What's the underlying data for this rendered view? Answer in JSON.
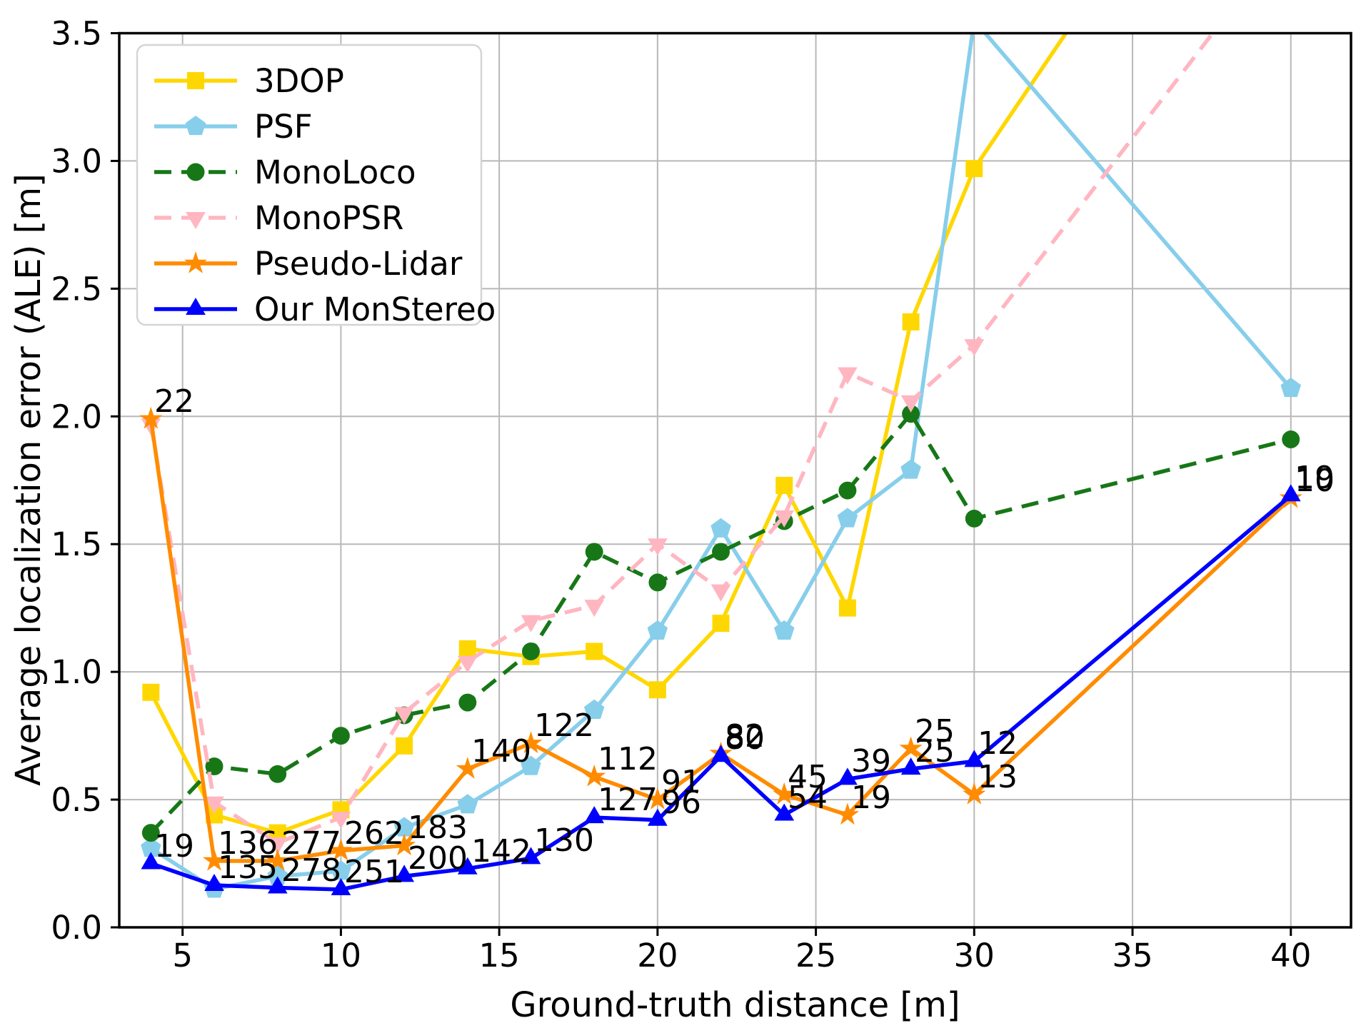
{
  "figure": {
    "background": "#ffffff",
    "plot_border_color": "#000000",
    "grid_color": "#b8b8b8"
  },
  "chart_data": {
    "type": "line",
    "title": "",
    "xlabel": "Ground-truth distance [m]",
    "ylabel": "Average localization error (ALE) [m]",
    "xlim": [
      3.0,
      41.9
    ],
    "ylim": [
      0,
      3.5
    ],
    "xticks": [
      5,
      10,
      15,
      20,
      25,
      30,
      35,
      40
    ],
    "yticks": [
      0.0,
      0.5,
      1.0,
      1.5,
      2.0,
      2.5,
      3.0,
      3.5
    ],
    "grid": true,
    "legend_position": "upper left",
    "x": [
      4,
      6,
      8,
      10,
      12,
      14,
      16,
      18,
      20,
      22,
      24,
      26,
      28,
      30,
      40
    ],
    "series": [
      {
        "name": "3DOP",
        "color": "#FFD700",
        "marker": "square",
        "linestyle": "solid",
        "values": [
          0.92,
          0.44,
          0.37,
          0.46,
          0.71,
          1.09,
          1.06,
          1.08,
          0.93,
          1.19,
          1.73,
          1.25,
          2.37,
          2.97,
          4.8
        ]
      },
      {
        "name": "PSF",
        "color": "#87CEEB",
        "marker": "pentagon",
        "linestyle": "solid",
        "values": [
          0.31,
          0.15,
          0.2,
          0.22,
          0.39,
          0.48,
          0.63,
          0.85,
          1.16,
          1.56,
          1.16,
          1.6,
          1.79,
          3.55,
          2.11
        ]
      },
      {
        "name": "MonoLoco",
        "color": "#177717",
        "marker": "circle",
        "linestyle": "dashed",
        "values": [
          0.37,
          0.63,
          0.6,
          0.75,
          0.83,
          0.88,
          1.08,
          1.47,
          1.35,
          1.47,
          1.59,
          1.71,
          2.01,
          1.6,
          1.91
        ]
      },
      {
        "name": "MonoPSR",
        "color": "#FFB6C1",
        "marker": "triangle-down",
        "linestyle": "dashed",
        "values": [
          1.97,
          0.49,
          0.33,
          0.43,
          0.84,
          1.04,
          1.2,
          1.26,
          1.5,
          1.32,
          1.61,
          2.17,
          2.06,
          2.28,
          3.9
        ]
      },
      {
        "name": "Pseudo-Lidar",
        "color": "#FF8C00",
        "marker": "star",
        "linestyle": "solid",
        "values": [
          1.99,
          0.26,
          0.26,
          0.3,
          0.32,
          0.62,
          0.72,
          0.59,
          0.5,
          0.68,
          0.52,
          0.44,
          0.7,
          0.52,
          1.68
        ],
        "annotations": [
          "22",
          "136",
          "277",
          "262",
          "183",
          "140",
          "122",
          "112",
          "91",
          "82",
          "45",
          "19",
          "25",
          "13",
          "10"
        ]
      },
      {
        "name": "Our MonStereo",
        "color": "#0000FF",
        "marker": "triangle-up",
        "linestyle": "solid",
        "values": [
          0.25,
          0.165,
          0.155,
          0.148,
          0.2,
          0.23,
          0.27,
          0.43,
          0.42,
          0.67,
          0.44,
          0.58,
          0.62,
          0.65,
          1.69
        ],
        "annotations": [
          "19",
          "135",
          "278",
          "251",
          "200",
          "142",
          "130",
          "127",
          "96",
          "80",
          "54",
          "39",
          "25",
          "12",
          "19"
        ]
      }
    ]
  }
}
